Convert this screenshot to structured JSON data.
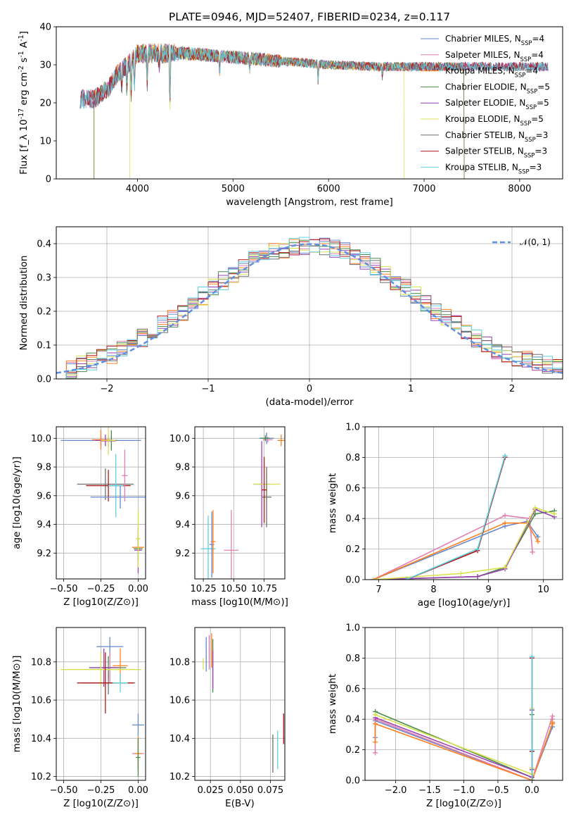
{
  "title": "PLATE=0946, MJD=52407, FIBERID=0234, z=0.117",
  "colors": {
    "chabrier_miles": "#6688cc",
    "salpeter_miles": "#e080b0",
    "kroupa_miles": "#ff8020",
    "chabrier_elodie": "#4a8a4a",
    "salpeter_elodie": "#9a40b0",
    "kroupa_elodie": "#d8e050",
    "chabrier_stelib": "#707070",
    "salpeter_stelib": "#b01818",
    "kroupa_stelib": "#60d0e0",
    "gaussian": "#6090e0"
  },
  "chart_data": [
    {
      "type": "line",
      "panel": "spectrum",
      "title": "PLATE=0946, MJD=52407, FIBERID=0234, z=0.117",
      "xlabel": "wavelength [Angstrom, rest frame]",
      "ylabel": "Flux [f_λ 10^-17 erg cm^-2 s^-1 A^-1]",
      "xlim": [
        3150,
        8450
      ],
      "ylim": [
        0,
        40
      ],
      "xticks": [
        "4000",
        "5000",
        "6000",
        "7000",
        "8000"
      ],
      "yticks": [
        "0",
        "10",
        "20",
        "30",
        "40"
      ],
      "legend": [
        "Chabrier MILES, N_SSP=4",
        "Salpeter MILES, N_SSP=4",
        "Kroupa MILES, N_SSP=4",
        "Chabrier ELODIE, N_SSP=5",
        "Salpeter ELODIE, N_SSP=5",
        "Kroupa ELODIE, N_SSP=5",
        "Chabrier STELIB, N_SSP=3",
        "Salpeter STELIB, N_SSP=3",
        "Kroupa STELIB, N_SSP=3"
      ],
      "legend_position": "top-right",
      "continuum": {
        "x": [
          3400,
          3550,
          3700,
          3800,
          3900,
          4000,
          4200,
          4500,
          5000,
          5500,
          6000,
          6500,
          7000,
          7500,
          8000,
          8300
        ],
        "y": [
          21,
          21,
          24,
          28,
          30,
          33,
          33,
          33,
          32,
          31,
          30,
          29.5,
          29.5,
          29.5,
          29.5,
          29.5
        ]
      },
      "series_start": [
        3400,
        3400,
        3545,
        3545,
        3400,
        3920,
        3400,
        3400,
        3400
      ],
      "series_end": [
        8300,
        8300,
        7420,
        7420,
        8300,
        6790,
        8300,
        8300,
        8300
      ]
    },
    {
      "type": "bar",
      "panel": "residuals",
      "xlabel": "(data-model)/error",
      "ylabel": "Normed distribution",
      "xlim": [
        -2.5,
        2.5
      ],
      "ylim": [
        0,
        0.45
      ],
      "xticks": [
        "−2",
        "−1",
        "0",
        "1",
        "2"
      ],
      "yticks": [
        "0.0",
        "0.1",
        "0.2",
        "0.3",
        "0.4"
      ],
      "bin_width": 0.1,
      "legend": [
        "𝒩(0, 1)"
      ],
      "legend_position": "top-right",
      "bins_center": [
        -2.45,
        -2.35,
        -2.25,
        -2.15,
        -2.05,
        -1.95,
        -1.85,
        -1.75,
        -1.65,
        -1.55,
        -1.45,
        -1.35,
        -1.25,
        -1.15,
        -1.05,
        -0.95,
        -0.85,
        -0.75,
        -0.65,
        -0.55,
        -0.45,
        -0.35,
        -0.25,
        -0.15,
        -0.05,
        0.05,
        0.15,
        0.25,
        0.35,
        0.45,
        0.55,
        0.65,
        0.75,
        0.85,
        0.95,
        1.05,
        1.15,
        1.25,
        1.35,
        1.45,
        1.55,
        1.65,
        1.75,
        1.85,
        1.95,
        2.05,
        2.15,
        2.25,
        2.35,
        2.45
      ],
      "mean_density": [
        0.025,
        0.03,
        0.045,
        0.05,
        0.06,
        0.07,
        0.085,
        0.1,
        0.12,
        0.14,
        0.16,
        0.18,
        0.2,
        0.22,
        0.245,
        0.27,
        0.29,
        0.31,
        0.33,
        0.35,
        0.365,
        0.375,
        0.385,
        0.39,
        0.395,
        0.395,
        0.39,
        0.385,
        0.375,
        0.365,
        0.35,
        0.33,
        0.31,
        0.29,
        0.27,
        0.245,
        0.22,
        0.2,
        0.18,
        0.16,
        0.14,
        0.12,
        0.1,
        0.085,
        0.07,
        0.06,
        0.055,
        0.05,
        0.04,
        0.035
      ]
    },
    {
      "type": "scatter",
      "panel": "age-vs-Z",
      "xlabel": "Z [log10(Z/Z⊙)]",
      "ylabel": "age [log10(age/yr)]",
      "xlim": [
        -0.55,
        0.05
      ],
      "ylim": [
        9.02,
        10.08
      ],
      "xticks": [
        "−0.50",
        "−0.25",
        "0.00"
      ],
      "yticks": [
        "9.2",
        "9.4",
        "9.6",
        "9.8",
        "10.0"
      ],
      "points": [
        {
          "x": -0.25,
          "y": 9.985,
          "xerr": 0.27,
          "yerr": 0.04
        },
        {
          "x": -0.2,
          "y": 9.98,
          "xerr": 0.05,
          "yerr": 0.04
        },
        {
          "x": -0.25,
          "y": 9.99,
          "xerr": 0.06,
          "yerr": 0.07
        },
        {
          "x": -0.18,
          "y": 9.985,
          "xerr": 0.04,
          "yerr": 0.07
        },
        {
          "x": -0.22,
          "y": 9.985,
          "xerr": 0.07,
          "yerr": 0.04
        },
        {
          "x": -0.2,
          "y": 9.985,
          "xerr": 0.05,
          "yerr": 0.1
        },
        {
          "x": -0.22,
          "y": 9.68,
          "xerr": 0.19,
          "yerr": 0.11
        },
        {
          "x": -0.2,
          "y": 9.67,
          "xerr": 0.15,
          "yerr": 0.11
        },
        {
          "x": -0.15,
          "y": 9.67,
          "xerr": 0.05,
          "yerr": 0.22
        },
        {
          "x": -0.12,
          "y": 9.59,
          "xerr": 0.2,
          "yerr": 0.08
        },
        {
          "x": -0.09,
          "y": 9.74,
          "xerr": 0.02,
          "yerr": 0.18
        },
        {
          "x": 0.0,
          "y": 9.24,
          "xerr": 0.04,
          "yerr": 0.02
        },
        {
          "x": 0.0,
          "y": 9.23,
          "xerr": 0.03,
          "yerr": 0.08
        },
        {
          "x": 0.0,
          "y": 9.22,
          "xerr": 0.025,
          "yerr": 0.16
        },
        {
          "x": 0.0,
          "y": 9.3,
          "xerr": 0.015,
          "yerr": 0.2
        }
      ]
    },
    {
      "type": "scatter",
      "panel": "age-vs-mass",
      "xlabel": "mass [log10(M/M⊙)]",
      "ylabel": "",
      "xlim": [
        10.18,
        10.92
      ],
      "ylim": [
        9.02,
        10.08
      ],
      "xticks": [
        "10.25",
        "10.50",
        "10.75"
      ],
      "yticks": [
        "9.2",
        "9.4",
        "9.6",
        "9.8",
        "10.0"
      ],
      "points": [
        {
          "x": 10.77,
          "y": 10.0,
          "xerr": 0.06,
          "yerr": 0.04
        },
        {
          "x": 10.78,
          "y": 9.99,
          "xerr": 0.04,
          "yerr": 0.02
        },
        {
          "x": 10.89,
          "y": 9.985,
          "xerr": 0.03,
          "yerr": 0.04
        },
        {
          "x": 10.76,
          "y": 10.0,
          "xerr": 0.04,
          "yerr": 0.02
        },
        {
          "x": 10.73,
          "y": 9.68,
          "xerr": 0.07,
          "yerr": 0.3
        },
        {
          "x": 10.77,
          "y": 9.68,
          "xerr": 0.11,
          "yerr": 0.11
        },
        {
          "x": 10.77,
          "y": 9.59,
          "xerr": 0.04,
          "yerr": 0.21
        },
        {
          "x": 10.75,
          "y": 9.64,
          "xerr": 0.02,
          "yerr": 0.23
        },
        {
          "x": 10.29,
          "y": 9.23,
          "xerr": 0.06,
          "yerr": 0.23
        },
        {
          "x": 10.32,
          "y": 9.26,
          "xerr": 0.02,
          "yerr": 0.23
        },
        {
          "x": 10.48,
          "y": 9.22,
          "xerr": 0.06,
          "yerr": 0.28
        },
        {
          "x": 10.33,
          "y": 9.28,
          "xerr": 0.02,
          "yerr": 0.22
        }
      ]
    },
    {
      "type": "line",
      "panel": "mass-weight-vs-age",
      "xlabel": "age [log10(age/yr)]",
      "ylabel": "mass weight",
      "xlim": [
        6.75,
        10.35
      ],
      "ylim": [
        0,
        1
      ],
      "xticks": [
        "7",
        "8",
        "9",
        "10"
      ],
      "yticks": [
        "0.0",
        "0.2",
        "0.4",
        "0.6",
        "0.8",
        "1.0"
      ],
      "series": [
        {
          "name": "Chabrier MILES, N_SSP=4",
          "x": [
            6.9,
            9.3,
            9.7,
            9.9
          ],
          "y": [
            0.0,
            0.35,
            0.38,
            0.28
          ]
        },
        {
          "name": "Salpeter MILES, N_SSP=4",
          "x": [
            6.9,
            9.3,
            9.75,
            9.8
          ],
          "y": [
            0.0,
            0.42,
            0.4,
            0.18
          ]
        },
        {
          "name": "Kroupa MILES, N_SSP=4",
          "x": [
            6.9,
            9.3,
            9.7,
            9.9
          ],
          "y": [
            0.0,
            0.37,
            0.37,
            0.25
          ]
        },
        {
          "name": "Chabrier ELODIE, N_SSP=5",
          "x": [
            6.9,
            8.8,
            9.3,
            9.85,
            10.2
          ],
          "y": [
            0.0,
            0.02,
            0.08,
            0.43,
            0.45
          ]
        },
        {
          "name": "Salpeter ELODIE, N_SSP=5",
          "x": [
            6.9,
            8.8,
            9.3,
            9.85,
            10.2
          ],
          "y": [
            0.0,
            0.02,
            0.07,
            0.46,
            0.41
          ]
        },
        {
          "name": "Kroupa ELODIE, N_SSP=5",
          "x": [
            6.9,
            8.5,
            9.3,
            9.85,
            10.2
          ],
          "y": [
            0.0,
            0.04,
            0.08,
            0.47,
            0.43
          ]
        },
        {
          "name": "Chabrier STELIB, N_SSP=3",
          "x": [
            7.5,
            8.8,
            9.3
          ],
          "y": [
            0.0,
            0.19,
            0.8
          ]
        },
        {
          "name": "Salpeter STELIB, N_SSP=3",
          "x": [
            7.5,
            8.8,
            9.3
          ],
          "y": [
            0.0,
            0.19,
            0.8
          ]
        },
        {
          "name": "Kroupa STELIB, N_SSP=3",
          "x": [
            7.5,
            8.8,
            9.3
          ],
          "y": [
            0.0,
            0.2,
            0.81
          ]
        }
      ]
    },
    {
      "type": "scatter",
      "panel": "mass-vs-Z",
      "xlabel": "Z [log10(Z/Z⊙)]",
      "ylabel": "mass [log10(M/M⊙)]",
      "xlim": [
        -0.55,
        0.05
      ],
      "ylim": [
        10.18,
        10.98
      ],
      "xticks": [
        "−0.50",
        "−0.25",
        "0.00"
      ],
      "yticks": [
        "10.2",
        "10.4",
        "10.6",
        "10.8"
      ],
      "points": [
        {
          "x": -0.19,
          "y": 10.88,
          "xerr": 0.09,
          "yerr": 0.05
        },
        {
          "x": -0.19,
          "y": 10.77,
          "xerr": 0.05,
          "yerr": 0.08
        },
        {
          "x": -0.12,
          "y": 10.78,
          "xerr": 0.05,
          "yerr": 0.09
        },
        {
          "x": -0.2,
          "y": 10.77,
          "xerr": 0.12,
          "yerr": 0.06
        },
        {
          "x": -0.23,
          "y": 10.77,
          "xerr": 0.1,
          "yerr": 0.1
        },
        {
          "x": -0.25,
          "y": 10.76,
          "xerr": 0.27,
          "yerr": 0.09
        },
        {
          "x": -0.2,
          "y": 10.69,
          "xerr": 0.18,
          "yerr": 0.06
        },
        {
          "x": -0.22,
          "y": 10.69,
          "xerr": 0.19,
          "yerr": 0.16
        },
        {
          "x": -0.12,
          "y": 10.69,
          "xerr": 0.05,
          "yerr": 0.05
        },
        {
          "x": 0.0,
          "y": 10.47,
          "xerr": 0.04,
          "yerr": 0.06
        },
        {
          "x": 0.0,
          "y": 10.32,
          "xerr": 0.04,
          "yerr": 0.08
        },
        {
          "x": 0.0,
          "y": 10.32,
          "xerr": 0.025,
          "yerr": 0.09
        },
        {
          "x": 0.0,
          "y": 10.3,
          "xerr": 0.015,
          "yerr": 0.1
        }
      ]
    },
    {
      "type": "scatter",
      "panel": "mass-vs-EBV",
      "xlabel": "E(B-V)",
      "ylabel": "",
      "xlim": [
        0.012,
        0.087
      ],
      "ylim": [
        10.18,
        10.98
      ],
      "xticks": [
        "0.025",
        "0.050",
        "0.075"
      ],
      "yticks": [
        "10.2",
        "10.4",
        "10.6",
        "10.8"
      ],
      "points": [
        {
          "x": 0.0215,
          "y": 10.84,
          "xerr": 0.0,
          "yerr": 0.09
        },
        {
          "x": 0.024,
          "y": 10.85,
          "xerr": 0.0,
          "yerr": 0.09
        },
        {
          "x": 0.026,
          "y": 10.86,
          "xerr": 0.0,
          "yerr": 0.09
        },
        {
          "x": 0.027,
          "y": 10.78,
          "xerr": 0.0,
          "yerr": 0.14
        },
        {
          "x": 0.027,
          "y": 10.76,
          "xerr": 0.0,
          "yerr": 0.1
        },
        {
          "x": 0.019,
          "y": 10.79,
          "xerr": 0.0,
          "yerr": 0.03
        },
        {
          "x": 0.077,
          "y": 10.32,
          "xerr": 0.0,
          "yerr": 0.1
        },
        {
          "x": 0.086,
          "y": 10.45,
          "xerr": 0.0,
          "yerr": 0.08
        },
        {
          "x": 0.081,
          "y": 10.34,
          "xerr": 0.0,
          "yerr": 0.1
        }
      ]
    },
    {
      "type": "line",
      "panel": "mass-weight-vs-Z",
      "xlabel": "Z [log10(Z/Z⊙)]",
      "ylabel": "mass weight",
      "xlim": [
        -2.45,
        0.45
      ],
      "ylim": [
        0,
        1
      ],
      "xticks": [
        "−2.0",
        "−1.5",
        "−1.0",
        "−0.5",
        "0.0"
      ],
      "yticks": [
        "0.0",
        "0.2",
        "0.4",
        "0.6",
        "0.8",
        "1.0"
      ],
      "series": [
        {
          "name": "Chabrier MILES, N_SSP=4",
          "x": [
            -2.3,
            -2.3,
            0.0,
            0.3,
            0.3
          ],
          "y": [
            0.28,
            0.39,
            0.0,
            0.35,
            0.38
          ]
        },
        {
          "name": "Salpeter MILES, N_SSP=4",
          "x": [
            -2.3,
            -2.3,
            0.0,
            0.3,
            0.3
          ],
          "y": [
            0.18,
            0.4,
            0.0,
            0.42,
            0.4
          ]
        },
        {
          "name": "Kroupa MILES, N_SSP=4",
          "x": [
            -2.3,
            -2.3,
            0.0,
            0.3,
            0.3
          ],
          "y": [
            0.25,
            0.37,
            0.0,
            0.37,
            0.38
          ]
        },
        {
          "name": "Chabrier ELODIE, N_SSP=5",
          "x": [
            -2.3,
            0.0,
            0.0,
            0.0
          ],
          "y": [
            0.45,
            0.02,
            0.08,
            0.43
          ]
        },
        {
          "name": "Salpeter ELODIE, N_SSP=5",
          "x": [
            -2.3,
            0.0,
            0.0,
            0.0
          ],
          "y": [
            0.41,
            0.02,
            0.07,
            0.46
          ]
        },
        {
          "name": "Kroupa ELODIE, N_SSP=5",
          "x": [
            -2.3,
            0.0,
            0.0,
            0.0
          ],
          "y": [
            0.43,
            0.04,
            0.08,
            0.47
          ]
        },
        {
          "name": "Chabrier STELIB, N_SSP=3",
          "x": [
            0.0,
            0.0,
            0.0
          ],
          "y": [
            0.0,
            0.19,
            0.8
          ]
        },
        {
          "name": "Salpeter STELIB, N_SSP=3",
          "x": [
            0.0,
            0.0,
            0.0
          ],
          "y": [
            0.0,
            0.19,
            0.8
          ]
        },
        {
          "name": "Kroupa STELIB, N_SSP=3",
          "x": [
            0.0,
            0.0,
            0.0
          ],
          "y": [
            0.0,
            0.2,
            0.81
          ]
        }
      ]
    }
  ]
}
